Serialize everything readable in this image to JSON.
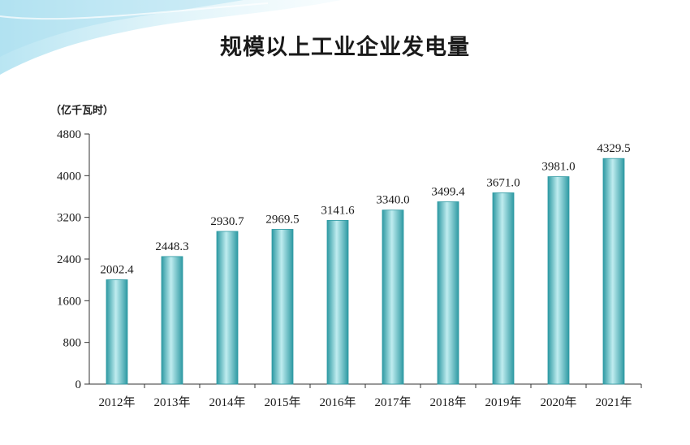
{
  "title": "规模以上工业企业发电量",
  "unit": "（亿千瓦时）",
  "colors": {
    "bar_light": "#bfecef",
    "bar_mid": "#6fcbd2",
    "bar_dark": "#2e9aa3",
    "axis": "#333333",
    "decor": "#8fd4ea"
  },
  "chart_data": {
    "type": "bar",
    "title": "规模以上工业企业发电量",
    "ylabel": "（亿千瓦时）",
    "xlabel": "",
    "categories": [
      "2012年",
      "2013年",
      "2014年",
      "2015年",
      "2016年",
      "2017年",
      "2018年",
      "2019年",
      "2020年",
      "2021年"
    ],
    "values": [
      2002.4,
      2448.3,
      2930.7,
      2969.5,
      3141.6,
      3340.0,
      3499.4,
      3671.0,
      3981.0,
      4329.5
    ],
    "value_labels": [
      "2002.4",
      "2448.3",
      "2930.7",
      "2969.5",
      "3141.6",
      "3340.0",
      "3499.4",
      "3671.0",
      "3981.0",
      "4329.5"
    ],
    "ylim": [
      0,
      4800
    ],
    "yticks": [
      "0",
      "800",
      "1600",
      "2400",
      "3200",
      "4000",
      "4800"
    ],
    "grid": false,
    "legend": "none"
  }
}
